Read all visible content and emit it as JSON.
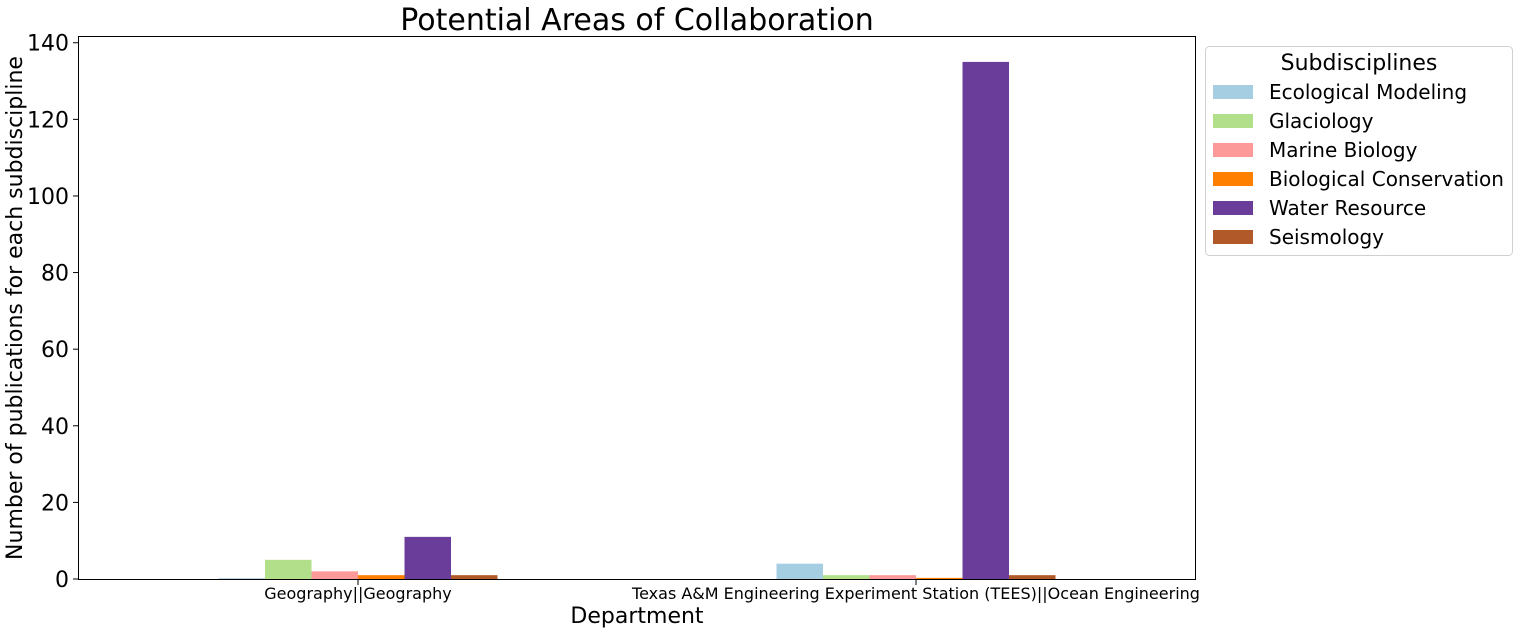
{
  "chart_data": {
    "type": "bar",
    "title": "Potential Areas of Collaboration",
    "xlabel": "Department",
    "ylabel": "Number of publications for each subdiscipline",
    "categories": [
      "Geography||Geography",
      "Texas A&M Engineering Experiment Station (TEES)||Ocean Engineering"
    ],
    "series": [
      {
        "name": "Ecological Modeling",
        "color": "#a6cee3",
        "values": [
          0.2,
          4
        ]
      },
      {
        "name": "Glaciology",
        "color": "#b2df8a",
        "values": [
          5,
          1
        ]
      },
      {
        "name": "Marine Biology",
        "color": "#fb9a99",
        "values": [
          2,
          1
        ]
      },
      {
        "name": "Biological Conservation",
        "color": "#ff7f00",
        "values": [
          1,
          0.3
        ]
      },
      {
        "name": "Water Resource",
        "color": "#6a3d9a",
        "values": [
          11,
          135
        ]
      },
      {
        "name": "Seismology",
        "color": "#b15928",
        "values": [
          1,
          1
        ]
      }
    ],
    "ylim": [
      0,
      141.5
    ],
    "yticks": [
      0,
      20,
      40,
      60,
      80,
      100,
      120,
      140
    ],
    "grid": false,
    "legend": {
      "title": "Subdisciplines",
      "placement": "outside-upper-right"
    }
  }
}
